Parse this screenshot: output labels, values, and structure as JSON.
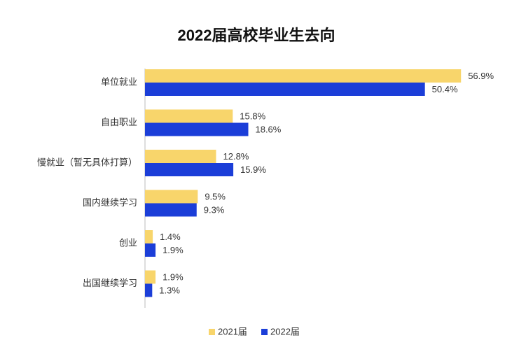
{
  "chart_data": {
    "type": "bar",
    "orientation": "horizontal",
    "title": "2022届高校毕业生去向",
    "categories": [
      "单位就业",
      "自由职业",
      "慢就业（暂无具体打算）",
      "国内继续学习",
      "创业",
      "出国继续学习"
    ],
    "series": [
      {
        "name": "2021届",
        "color": "#f8d56b",
        "values": [
          56.9,
          15.8,
          12.8,
          9.5,
          1.4,
          1.9
        ],
        "value_labels": [
          "56.9%",
          "15.8%",
          "12.8%",
          "9.5%",
          "1.4%",
          "1.9%"
        ]
      },
      {
        "name": "2022届",
        "color": "#1b3ed8",
        "values": [
          50.4,
          18.6,
          15.9,
          9.3,
          1.9,
          1.3
        ],
        "value_labels": [
          "50.4%",
          "18.6%",
          "15.9%",
          "9.3%",
          "1.9%",
          "1.3%"
        ]
      }
    ]
  }
}
